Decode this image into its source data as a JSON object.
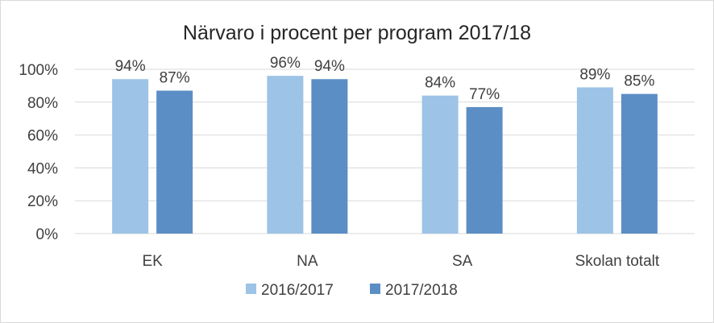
{
  "chart_data": {
    "type": "bar",
    "title": "Närvaro i procent per program 2017/18",
    "xlabel": "",
    "ylabel": "",
    "categories": [
      "EK",
      "NA",
      "SA",
      "Skolan totalt"
    ],
    "series": [
      {
        "name": "2016/2017",
        "values": [
          94,
          96,
          84,
          89
        ],
        "labels": [
          "94%",
          "96%",
          "84%",
          "89%"
        ],
        "color": "#9dc3e6"
      },
      {
        "name": "2017/2018",
        "values": [
          87,
          94,
          77,
          85
        ],
        "labels": [
          "87%",
          "94%",
          "77%",
          "85%"
        ],
        "color": "#5b8ec5"
      }
    ],
    "ylim": [
      0,
      100
    ],
    "yticks": [
      0,
      20,
      40,
      60,
      80,
      100
    ],
    "ytick_labels": [
      "0%",
      "20%",
      "40%",
      "60%",
      "80%",
      "100%"
    ],
    "grid": true,
    "legend_position": "bottom"
  }
}
